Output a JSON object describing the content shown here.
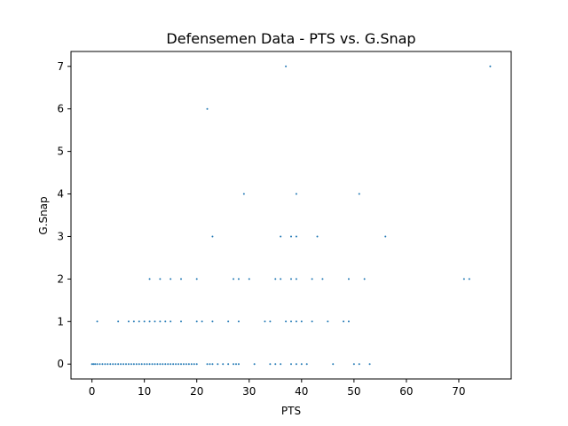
{
  "chart_data": {
    "type": "scatter",
    "title": "Defensemen Data - PTS vs. G.Snap",
    "xlabel": "PTS",
    "ylabel": "G.Snap",
    "xlim": [
      -4,
      80
    ],
    "ylim": [
      -0.35,
      7.35
    ],
    "xticks": [
      0,
      10,
      20,
      30,
      40,
      50,
      60,
      70
    ],
    "yticks": [
      0,
      1,
      2,
      3,
      4,
      5,
      6,
      7
    ],
    "grid": false,
    "marker_color": "#1f77b4",
    "series": [
      {
        "x": [
          0,
          0.3,
          0.6,
          1,
          1.5,
          2,
          2.5,
          3,
          3.5,
          4,
          4.5,
          5,
          5.5,
          6,
          6.5,
          7,
          7.5,
          8,
          8.5,
          9,
          9.5,
          10,
          10.5,
          11,
          11.5,
          12,
          12.5,
          13,
          13.5,
          14,
          14.5,
          15,
          15.5,
          16,
          16.5,
          17,
          17.5,
          18,
          18.5,
          19,
          19.5,
          20,
          22,
          22.5,
          23,
          24,
          25,
          26,
          27,
          27.5,
          28,
          31,
          34,
          35,
          36,
          38,
          39,
          40,
          41,
          46,
          50,
          51,
          53,
          1,
          5,
          7,
          8,
          9,
          10,
          11,
          12,
          13,
          14,
          15,
          17,
          20,
          21,
          23,
          26,
          28,
          33,
          34,
          37,
          38,
          39,
          40,
          42,
          45,
          48,
          49,
          11,
          13,
          15,
          17,
          20,
          27,
          28,
          30,
          35,
          36,
          38,
          39,
          42,
          44,
          49,
          52,
          71,
          72,
          23,
          36,
          38,
          39,
          43,
          56,
          29,
          39,
          51,
          22,
          37,
          76
        ],
        "y": [
          0,
          0,
          0,
          0,
          0,
          0,
          0,
          0,
          0,
          0,
          0,
          0,
          0,
          0,
          0,
          0,
          0,
          0,
          0,
          0,
          0,
          0,
          0,
          0,
          0,
          0,
          0,
          0,
          0,
          0,
          0,
          0,
          0,
          0,
          0,
          0,
          0,
          0,
          0,
          0,
          0,
          0,
          0,
          0,
          0,
          0,
          0,
          0,
          0,
          0,
          0,
          0,
          0,
          0,
          0,
          0,
          0,
          0,
          0,
          0,
          0,
          0,
          0,
          1,
          1,
          1,
          1,
          1,
          1,
          1,
          1,
          1,
          1,
          1,
          1,
          1,
          1,
          1,
          1,
          1,
          1,
          1,
          1,
          1,
          1,
          1,
          1,
          1,
          1,
          1,
          2,
          2,
          2,
          2,
          2,
          2,
          2,
          2,
          2,
          2,
          2,
          2,
          2,
          2,
          2,
          2,
          2,
          2,
          3,
          3,
          3,
          3,
          3,
          3,
          4,
          4,
          4,
          6,
          7,
          7
        ]
      }
    ]
  }
}
